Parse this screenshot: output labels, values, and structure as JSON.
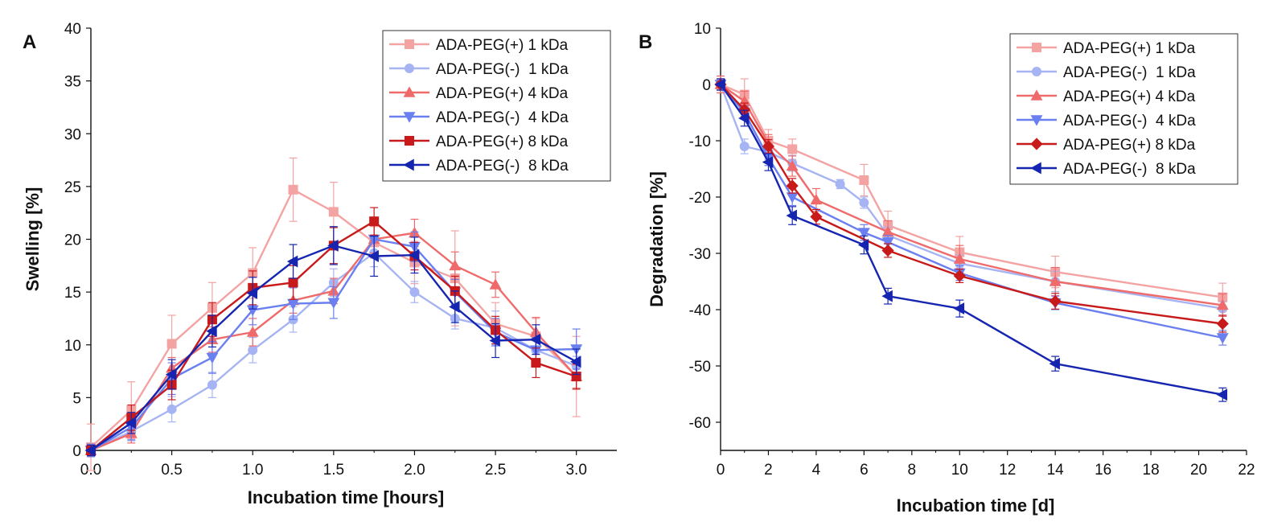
{
  "chart_data": [
    {
      "type": "line",
      "panel_label": "A",
      "xlabel": "Incubation time [hours]",
      "ylabel": "Swelling [%]",
      "xlim": [
        0,
        3.25
      ],
      "ylim": [
        0,
        40
      ],
      "xticks": [
        "0.0",
        "0.5",
        "1.0",
        "1.5",
        "2.0",
        "2.5",
        "3.0"
      ],
      "yticks": [
        "0",
        "5",
        "10",
        "15",
        "20",
        "25",
        "30",
        "35",
        "40"
      ],
      "legend_position": "top-right",
      "grid": false,
      "x": [
        0,
        0.25,
        0.5,
        0.75,
        1.0,
        1.25,
        1.5,
        1.75,
        2.0,
        2.25,
        2.5,
        2.75,
        3.0
      ],
      "series": [
        {
          "name": "ADA-PEG(+) 1 kDa",
          "color": "#f4a3a3",
          "marker": "square",
          "values": [
            0.3,
            3.8,
            10.1,
            13.5,
            16.8,
            24.7,
            22.6,
            19.7,
            17.8,
            16.3,
            12.0,
            10.8,
            7.0
          ],
          "errors": [
            2.2,
            2.7,
            2.7,
            2.4,
            2.4,
            3.0,
            2.8,
            1.5,
            2.0,
            4.5,
            2.0,
            1.7,
            3.8
          ]
        },
        {
          "name": "ADA-PEG(-)  1 kDa",
          "color": "#a6b4f4",
          "marker": "circle",
          "values": [
            0.0,
            1.8,
            3.9,
            6.2,
            9.5,
            12.4,
            15.9,
            18.7,
            15.0,
            12.5,
            11.6,
            9.5,
            8.0
          ],
          "errors": [
            0.6,
            0.9,
            1.2,
            1.2,
            1.2,
            1.2,
            1.3,
            1.3,
            1.0,
            1.0,
            1.6,
            1.5,
            0.9
          ]
        },
        {
          "name": "ADA-PEG(+) 4 kDa",
          "color": "#ef6b6b",
          "marker": "triangle-up",
          "values": [
            0.0,
            1.6,
            7.8,
            10.5,
            11.2,
            14.2,
            15.1,
            20.0,
            20.6,
            17.5,
            15.7,
            11.2,
            7.0
          ],
          "errors": [
            0.6,
            0.9,
            1.0,
            1.2,
            1.3,
            1.2,
            1.2,
            1.3,
            1.3,
            1.3,
            1.2,
            1.4,
            1.1
          ]
        },
        {
          "name": "ADA-PEG(-)  4 kDa",
          "color": "#6a7ff0",
          "marker": "triangle-down",
          "values": [
            0.0,
            2.2,
            6.8,
            8.8,
            13.3,
            13.9,
            14.0,
            20.0,
            19.3,
            15.0,
            11.2,
            9.5,
            9.6
          ],
          "errors": [
            0.6,
            1.2,
            1.5,
            1.5,
            1.4,
            1.5,
            1.5,
            1.7,
            1.4,
            1.2,
            1.3,
            1.2,
            1.9
          ]
        },
        {
          "name": "ADA-PEG(+) 8 kDa",
          "color": "#c81a1a",
          "marker": "square",
          "values": [
            0.0,
            3.1,
            6.2,
            12.4,
            15.4,
            15.9,
            19.4,
            21.7,
            18.4,
            15.1,
            11.4,
            8.3,
            7.0
          ],
          "errors": [
            0.5,
            1.2,
            1.4,
            1.6,
            1.6,
            1.6,
            1.7,
            1.3,
            1.3,
            1.4,
            1.3,
            1.4,
            1.2
          ]
        },
        {
          "name": "ADA-PEG(-)  8 kDa",
          "color": "#1525b0",
          "marker": "triangle-left",
          "values": [
            0.0,
            2.6,
            7.2,
            11.3,
            14.9,
            17.9,
            19.4,
            18.4,
            18.5,
            13.6,
            10.4,
            10.5,
            8.4
          ],
          "errors": [
            0.5,
            1.0,
            1.4,
            1.5,
            1.5,
            1.6,
            1.8,
            1.9,
            1.7,
            1.5,
            1.6,
            1.4,
            1.2
          ]
        }
      ]
    },
    {
      "type": "line",
      "panel_label": "B",
      "xlabel": "Incubation time [d]",
      "ylabel": "Degradation [%]",
      "xlim": [
        0,
        22
      ],
      "ylim": [
        -65,
        10
      ],
      "xticks": [
        "0",
        "2",
        "4",
        "6",
        "8",
        "10",
        "12",
        "14",
        "16",
        "18",
        "20",
        "22"
      ],
      "yticks": [
        "10",
        "0",
        "-10",
        "-20",
        "-30",
        "-40",
        "-50",
        "-60"
      ],
      "legend_position": "top-right",
      "grid": false,
      "series": [
        {
          "name": "ADA-PEG(+) 1 kDa",
          "color": "#f4a3a3",
          "marker": "square",
          "x": [
            0,
            1,
            2,
            3,
            6,
            7,
            10,
            14,
            21
          ],
          "values": [
            0.0,
            -1.8,
            -10.0,
            -11.5,
            -17.0,
            -25.0,
            -29.8,
            -33.3,
            -37.8
          ],
          "errors": [
            1.5,
            2.8,
            2.0,
            1.8,
            2.8,
            2.5,
            2.8,
            2.8,
            2.5
          ]
        },
        {
          "name": "ADA-PEG(-)  1 kDa",
          "color": "#a6b4f4",
          "marker": "circle",
          "x": [
            0,
            1,
            2,
            3,
            5,
            6,
            7,
            10,
            14,
            21
          ],
          "values": [
            0.0,
            -11.0,
            -12.0,
            -14.0,
            -17.7,
            -21.0,
            -26.8,
            -31.8,
            -35.0,
            -39.8
          ],
          "errors": [
            1.0,
            1.3,
            1.3,
            1.4,
            0.8,
            1.0,
            1.5,
            1.5,
            1.8,
            1.2
          ]
        },
        {
          "name": "ADA-PEG(+) 4 kDa",
          "color": "#ef6b6b",
          "marker": "triangle-up",
          "x": [
            0,
            1,
            2,
            3,
            4,
            7,
            10,
            14,
            21
          ],
          "values": [
            0.0,
            -3.0,
            -10.5,
            -14.5,
            -20.5,
            -26.2,
            -31.0,
            -35.0,
            -39.2
          ],
          "errors": [
            1.5,
            1.8,
            1.6,
            1.8,
            2.0,
            2.0,
            2.4,
            2.5,
            2.0
          ]
        },
        {
          "name": "ADA-PEG(-)  4 kDa",
          "color": "#6a7ff0",
          "marker": "triangle-down",
          "x": [
            0,
            1,
            2,
            3,
            6,
            7,
            10,
            14,
            21
          ],
          "values": [
            0.0,
            -5.0,
            -13.0,
            -20.0,
            -26.3,
            -28.0,
            -33.5,
            -38.8,
            -45.0
          ],
          "errors": [
            1.0,
            1.2,
            1.4,
            1.5,
            1.4,
            1.2,
            1.3,
            1.2,
            1.3
          ]
        },
        {
          "name": "ADA-PEG(+) 8 kDa",
          "color": "#c81a1a",
          "marker": "diamond",
          "x": [
            0,
            1,
            2,
            3,
            4,
            7,
            10,
            14,
            21
          ],
          "values": [
            0.0,
            -4.5,
            -11.0,
            -18.0,
            -23.5,
            -29.5,
            -34.0,
            -38.5,
            -42.5
          ],
          "errors": [
            1.0,
            1.2,
            1.2,
            1.3,
            1.3,
            1.2,
            1.2,
            1.4,
            1.5
          ]
        },
        {
          "name": "ADA-PEG(-)  8 kDa",
          "color": "#1525b0",
          "marker": "triangle-left",
          "x": [
            0,
            1,
            2,
            3,
            6,
            7,
            10,
            14,
            21
          ],
          "values": [
            0.0,
            -6.0,
            -13.8,
            -23.3,
            -28.5,
            -37.6,
            -39.8,
            -49.6,
            -55.1
          ],
          "errors": [
            1.0,
            1.4,
            1.5,
            1.6,
            1.6,
            1.4,
            1.5,
            1.3,
            1.2
          ]
        }
      ]
    }
  ]
}
